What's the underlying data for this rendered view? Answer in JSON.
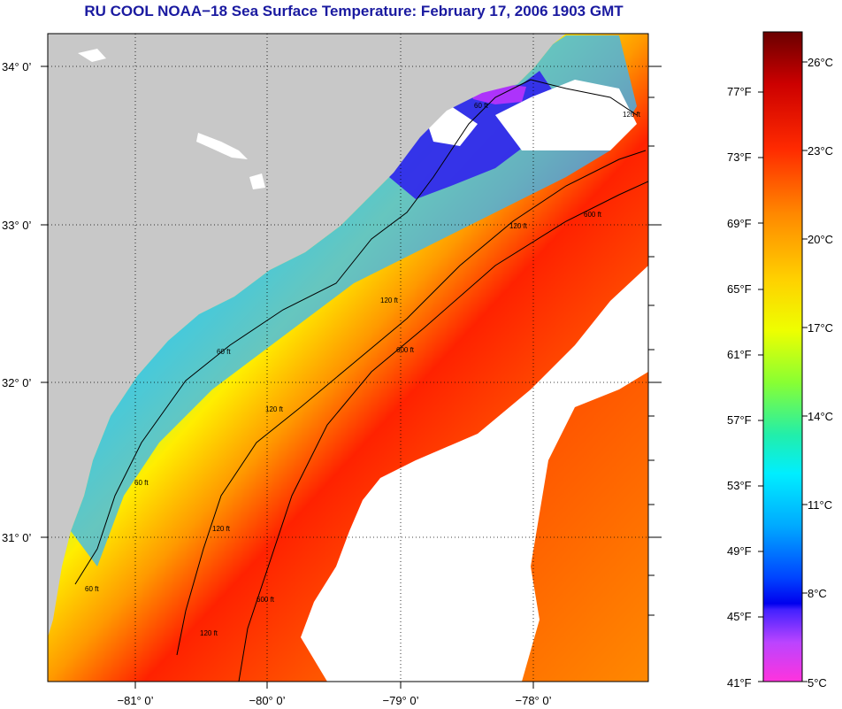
{
  "title": "RU COOL  NOAA−18  Sea Surface Temperature:  February 17, 2006 1903 GMT",
  "map": {
    "lat_labels": [
      "34° 0’",
      "33° 0’",
      "32° 0’",
      "31° 0’"
    ],
    "lon_labels": [
      "−81° 0’",
      "−80° 0’",
      "−79° 0’",
      "−78° 0’"
    ],
    "contour_labels": [
      "60 ft",
      "120 ft",
      "600 ft"
    ]
  },
  "colorbar": {
    "fahrenheit": [
      "77°F",
      "73°F",
      "69°F",
      "65°F",
      "61°F",
      "57°F",
      "53°F",
      "49°F",
      "45°F",
      "41°F"
    ],
    "celsius": [
      "26°C",
      "23°C",
      "20°C",
      "17°C",
      "14°C",
      "11°C",
      "8°C",
      "5°C"
    ],
    "colors": [
      "#7a0000",
      "#d40000",
      "#ff2200",
      "#ff6a00",
      "#ffaa00",
      "#ffee00",
      "#aaff22",
      "#33ee99",
      "#00eeff",
      "#0088ff",
      "#0000ff",
      "#cc44ff",
      "#ff33dd"
    ]
  }
}
